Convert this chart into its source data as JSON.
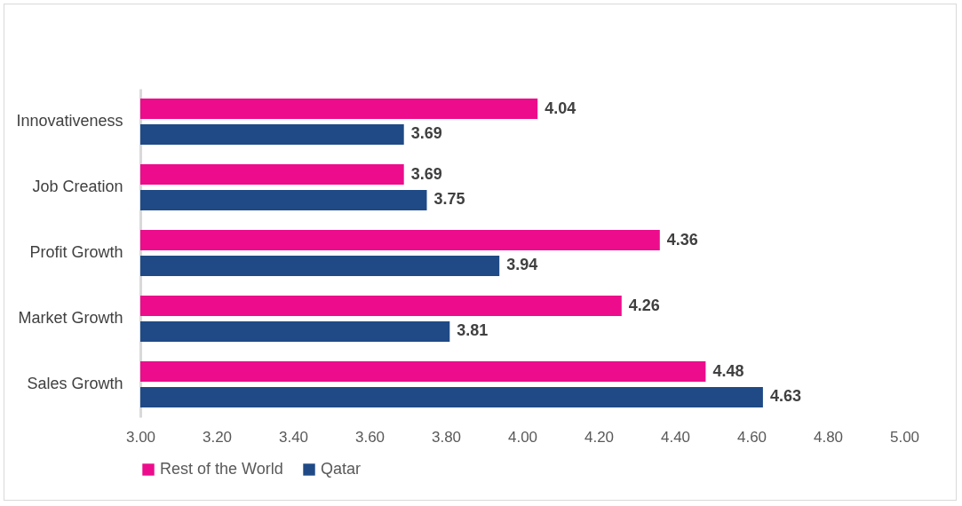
{
  "chart_data": {
    "type": "bar",
    "orientation": "horizontal",
    "categories": [
      "Innovativeness",
      "Job Creation",
      "Profit Growth",
      "Market Growth",
      "Sales Growth"
    ],
    "series": [
      {
        "name": "Rest of the World",
        "color": "#ec0c8c",
        "values": [
          4.04,
          3.69,
          4.36,
          4.26,
          4.48
        ]
      },
      {
        "name": "Qatar",
        "color": "#1f4a86",
        "values": [
          3.69,
          3.75,
          3.94,
          3.81,
          4.63
        ]
      }
    ],
    "xlim": [
      3,
      5
    ],
    "xticks": [
      {
        "value": 3,
        "label": "3.00"
      },
      {
        "value": 3.2,
        "label": "3.20"
      },
      {
        "value": 3.4,
        "label": "3.40"
      },
      {
        "value": 3.6,
        "label": "3.60"
      },
      {
        "value": 3.8,
        "label": "3.80"
      },
      {
        "value": 4,
        "label": "4.00"
      },
      {
        "value": 4.2,
        "label": "4.20"
      },
      {
        "value": 4.4,
        "label": "4.40"
      },
      {
        "value": 4.6,
        "label": "4.60"
      },
      {
        "value": 4.8,
        "label": "4.80"
      },
      {
        "value": 5,
        "label": "5.00"
      }
    ],
    "data_labels": true,
    "grid": false,
    "legend": "bottom"
  }
}
